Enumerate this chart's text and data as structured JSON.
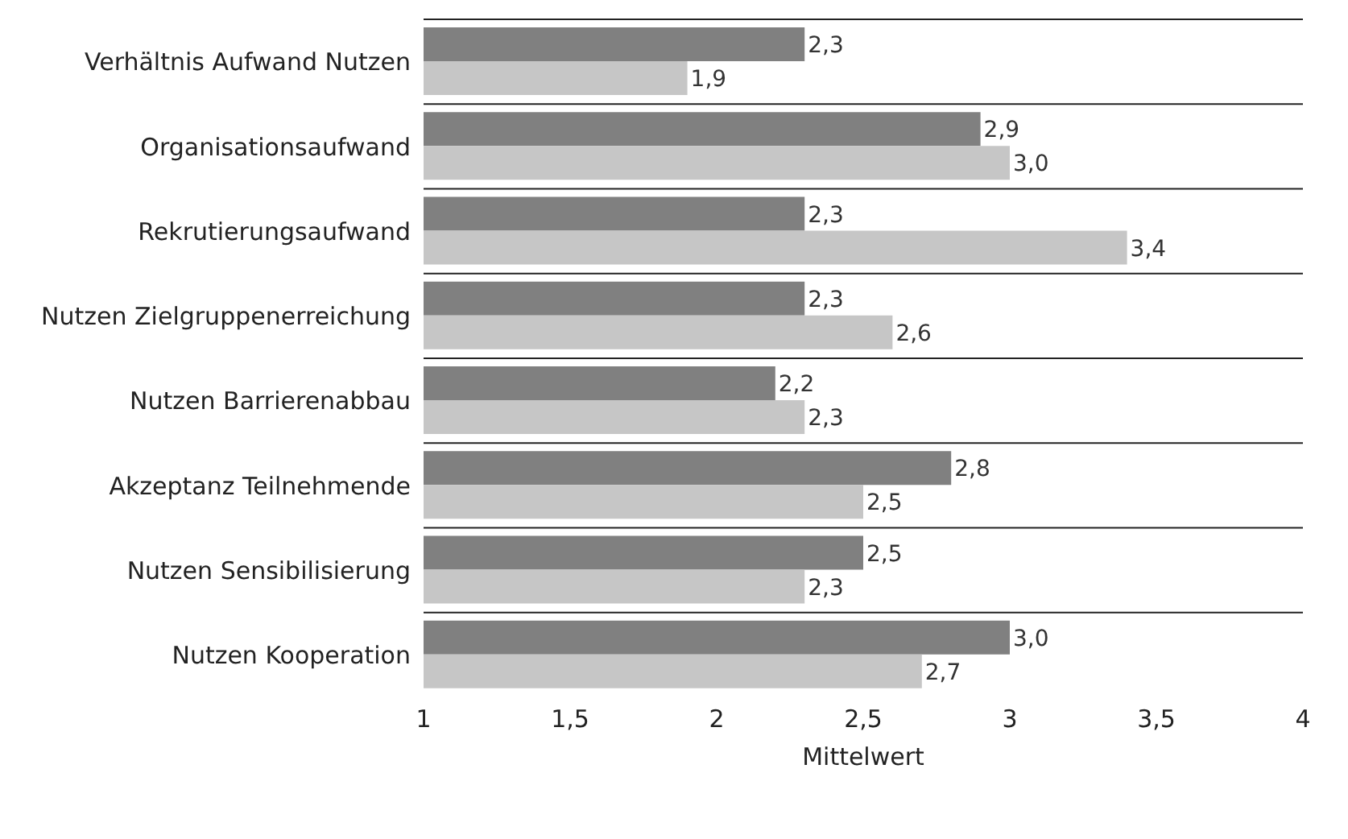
{
  "chart_data": {
    "type": "bar",
    "orientation": "horizontal",
    "xlabel": "Mittelwert",
    "categories": [
      "Verhältnis Aufwand Nutzen",
      "Organisationsaufwand",
      "Rekrutierungsaufwand",
      "Nutzen Zielgruppenerreichung",
      "Nutzen Barrierenabbau",
      "Akzeptanz Teilnehmende",
      "Nutzen Sensibilisierung",
      "Nutzen Kooperation"
    ],
    "series": [
      {
        "color": "#808080",
        "values": [
          2.3,
          2.9,
          2.3,
          2.3,
          2.2,
          2.8,
          2.5,
          3.0
        ],
        "value_labels": [
          "2,3",
          "2,9",
          "2,3",
          "2,3",
          "2,2",
          "2,8",
          "2,5",
          "3,0"
        ]
      },
      {
        "color": "#c6c6c6",
        "values": [
          1.9,
          3.0,
          3.4,
          2.6,
          2.3,
          2.5,
          2.3,
          2.7
        ],
        "value_labels": [
          "1,9",
          "3,0",
          "3,4",
          "2,6",
          "2,3",
          "2,5",
          "2,3",
          "2,7"
        ]
      }
    ],
    "xlim": [
      1,
      4
    ],
    "xticks": [
      1,
      {
        "value": 1.5,
        "label": "1,5"
      },
      2,
      {
        "value": 2.5,
        "label": "2,5"
      },
      3,
      {
        "value": 3.5,
        "label": "3,5"
      },
      4
    ],
    "grid": "y"
  }
}
